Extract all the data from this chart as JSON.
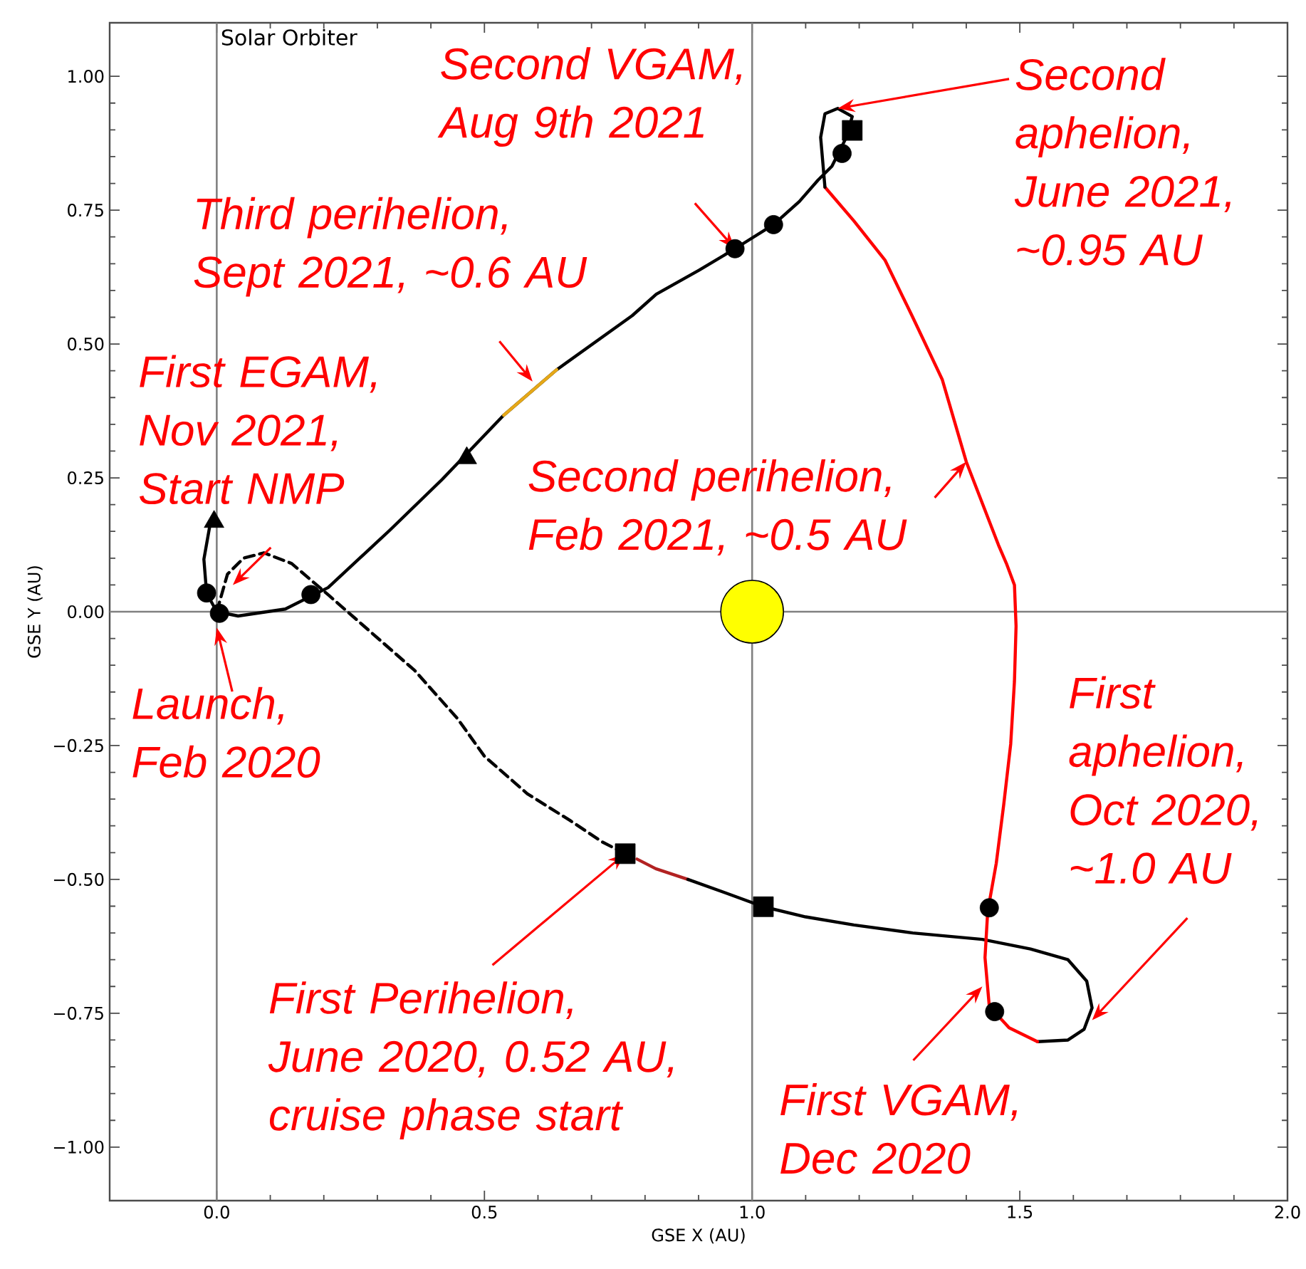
{
  "chart_data": {
    "type": "line",
    "title": "Solar Orbiter",
    "xlabel": "GSE X (AU)",
    "ylabel": "GSE Y (AU)",
    "xlim": [
      -0.2,
      2.0
    ],
    "ylim": [
      -1.1,
      1.1
    ],
    "xticks": [
      {
        "value": 0,
        "label": "0.0"
      },
      {
        "value": 0.5,
        "label": "0.5"
      },
      {
        "value": 1,
        "label": "1.0"
      },
      {
        "value": 1.5,
        "label": "1.5"
      },
      {
        "value": 2,
        "label": "2.0"
      }
    ],
    "yticks": [
      {
        "value": -1,
        "label": "−1.00"
      },
      {
        "value": -0.75,
        "label": "−0.75"
      },
      {
        "value": -0.5,
        "label": "−0.50"
      },
      {
        "value": -0.25,
        "label": "−0.25"
      },
      {
        "value": 0,
        "label": "0.00"
      },
      {
        "value": 0.25,
        "label": "0.25"
      },
      {
        "value": 0.5,
        "label": "0.50"
      },
      {
        "value": 0.75,
        "label": "0.75"
      },
      {
        "value": 1,
        "label": "1.00"
      }
    ],
    "ref_lines": [
      {
        "axis": "x",
        "value": 0,
        "color": "#808080"
      },
      {
        "axis": "x",
        "value": 1,
        "color": "#808080"
      },
      {
        "axis": "y",
        "value": 0,
        "color": "#808080"
      }
    ],
    "series": [
      {
        "color": "#000000",
        "line_style": "dashed",
        "x": [
          0.0,
          0.02,
          0.05,
          0.088,
          0.14,
          0.21,
          0.29,
          0.37,
          0.45,
          0.5,
          0.58,
          0.66,
          0.72,
          0.763
        ],
        "values": [
          0.0,
          0.07,
          0.1,
          0.11,
          0.09,
          0.03,
          -0.04,
          -0.11,
          -0.2,
          -0.27,
          -0.34,
          -0.39,
          -0.43,
          -0.452
        ]
      },
      {
        "color": "#b22222",
        "x": [
          0.785,
          0.82,
          0.88
        ],
        "values": [
          -0.462,
          -0.48,
          -0.5
        ]
      },
      {
        "color": "#000000",
        "x": [
          0.88,
          0.95,
          1.021,
          1.1,
          1.19,
          1.3,
          1.43,
          1.52,
          1.59,
          1.625,
          1.635,
          1.62,
          1.59,
          1.533
        ],
        "values": [
          -0.5,
          -0.525,
          -0.551,
          -0.57,
          -0.585,
          -0.6,
          -0.612,
          -0.63,
          -0.65,
          -0.69,
          -0.74,
          -0.78,
          -0.8,
          -0.803
        ]
      },
      {
        "color": "#ff0000",
        "x": [
          1.533,
          1.48,
          1.443,
          1.435,
          1.44,
          1.456,
          1.47,
          1.483,
          1.49,
          1.493,
          1.49,
          1.475,
          1.46,
          1.4,
          1.355,
          1.3,
          1.248,
          1.19,
          1.136
        ],
        "values": [
          -0.803,
          -0.777,
          -0.737,
          -0.646,
          -0.56,
          -0.47,
          -0.36,
          -0.247,
          -0.13,
          -0.027,
          0.05,
          0.09,
          0.125,
          0.28,
          0.434,
          0.55,
          0.657,
          0.73,
          0.793
        ]
      },
      {
        "color": "#000000",
        "x": [
          1.136,
          1.128,
          1.136,
          1.16,
          1.187,
          1.176,
          1.149,
          1.123,
          1.088,
          1.04,
          0.968,
          0.901,
          0.821,
          0.776,
          0.635,
          0.536,
          0.421,
          0.323,
          0.208,
          0.128,
          0.04,
          0.0,
          -0.019,
          -0.024,
          -0.013
        ],
        "values": [
          0.793,
          0.886,
          0.93,
          0.94,
          0.925,
          0.886,
          0.832,
          0.806,
          0.766,
          0.723,
          0.678,
          0.638,
          0.593,
          0.553,
          0.452,
          0.367,
          0.247,
          0.152,
          0.045,
          0.005,
          -0.008,
          0.0,
          0.035,
          0.098,
          0.16
        ]
      },
      {
        "color": "#e6a817",
        "x": [
          0.536,
          0.635
        ],
        "values": [
          0.367,
          0.452
        ]
      },
      {
        "type": "scatter",
        "marker": "circle",
        "color": "#000000",
        "x": [
          -0.019,
          0.005,
          0.176,
          0.968,
          1.04,
          1.168,
          1.443,
          1.453
        ],
        "values": [
          0.035,
          -0.003,
          0.032,
          0.678,
          0.723,
          0.856,
          -0.553,
          -0.747
        ]
      },
      {
        "type": "scatter",
        "marker": "triangle",
        "color": "#000000",
        "x": [
          -0.005,
          0.467
        ],
        "values": [
          0.168,
          0.287
        ]
      },
      {
        "type": "scatter",
        "marker": "square",
        "color": "#000000",
        "x": [
          0.763,
          1.187,
          1.021
        ],
        "values": [
          -0.452,
          0.899,
          -0.551
        ]
      },
      {
        "type": "bubble",
        "color": "#ffff00",
        "x": [
          1.0
        ],
        "values": [
          0.0
        ],
        "sizes": [
          1
        ]
      }
    ],
    "annotations": [
      {
        "text": "Second VGAM, Aug 9th 2021",
        "x": 0.968,
        "y": 0.678
      },
      {
        "text": "Third perihelion, Sept 2021, ~0.6 AU",
        "x": 0.59,
        "y": 0.43
      },
      {
        "text": "First EGAM, Nov 2021, Start NMP",
        "x": 0.03,
        "y": 0.05
      },
      {
        "text": "Second perihelion, Feb 2021, ~0.5 AU",
        "x": 1.4,
        "y": 0.28
      },
      {
        "text": "Second aphelion, June 2021, ~0.95 AU",
        "x": 1.16,
        "y": 0.94
      },
      {
        "text": "Launch, Feb 2020",
        "x": 0.0,
        "y": -0.03
      },
      {
        "text": "First Perihelion, June 2020, 0.52 AU, cruise phase start",
        "x": 0.763,
        "y": -0.452
      },
      {
        "text": "First aphelion, Oct 2020, ~1.0 AU",
        "x": 1.635,
        "y": -0.763
      },
      {
        "text": "First VGAM, Dec 2020",
        "x": 1.43,
        "y": -0.7
      }
    ]
  }
}
